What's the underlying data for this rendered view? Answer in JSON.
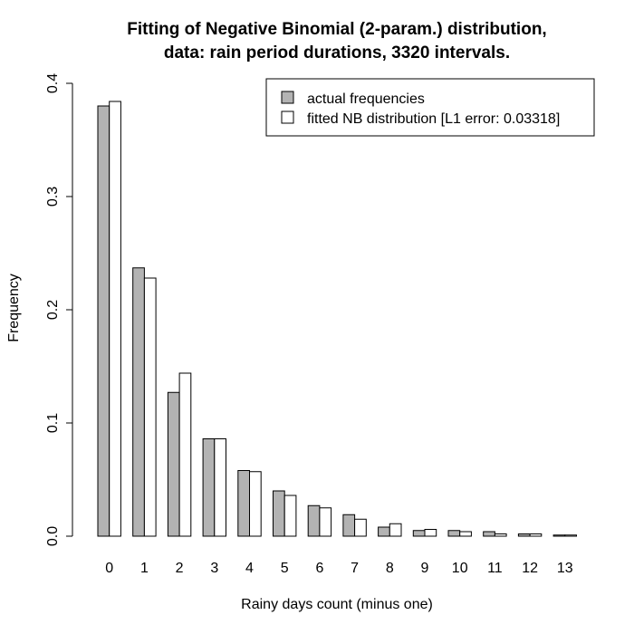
{
  "chart_data": {
    "type": "bar",
    "title_line1": "Fitting of Negative Binomial (2-param.) distribution,",
    "title_line2": "data: rain period durations, 3320 intervals.",
    "xlabel": "Rainy days count (minus one)",
    "ylabel": "Frequency",
    "ylim": [
      0,
      0.4
    ],
    "yticks": [
      "0.0",
      "0.1",
      "0.2",
      "0.3",
      "0.4"
    ],
    "categories": [
      "0",
      "1",
      "2",
      "3",
      "4",
      "5",
      "6",
      "7",
      "8",
      "9",
      "10",
      "11",
      "12",
      "13"
    ],
    "series": [
      {
        "name": "actual frequencies",
        "color": "#b3b3b3",
        "values": [
          0.38,
          0.237,
          0.127,
          0.086,
          0.058,
          0.04,
          0.027,
          0.019,
          0.008,
          0.005,
          0.005,
          0.004,
          0.002,
          0.001
        ]
      },
      {
        "name": "fitted NB distribution [L1 error: 0.03318]",
        "color": "#ffffff",
        "values": [
          0.384,
          0.228,
          0.144,
          0.086,
          0.057,
          0.036,
          0.025,
          0.015,
          0.011,
          0.006,
          0.004,
          0.002,
          0.002,
          0.001
        ]
      }
    ],
    "legend_position": "top-right"
  }
}
